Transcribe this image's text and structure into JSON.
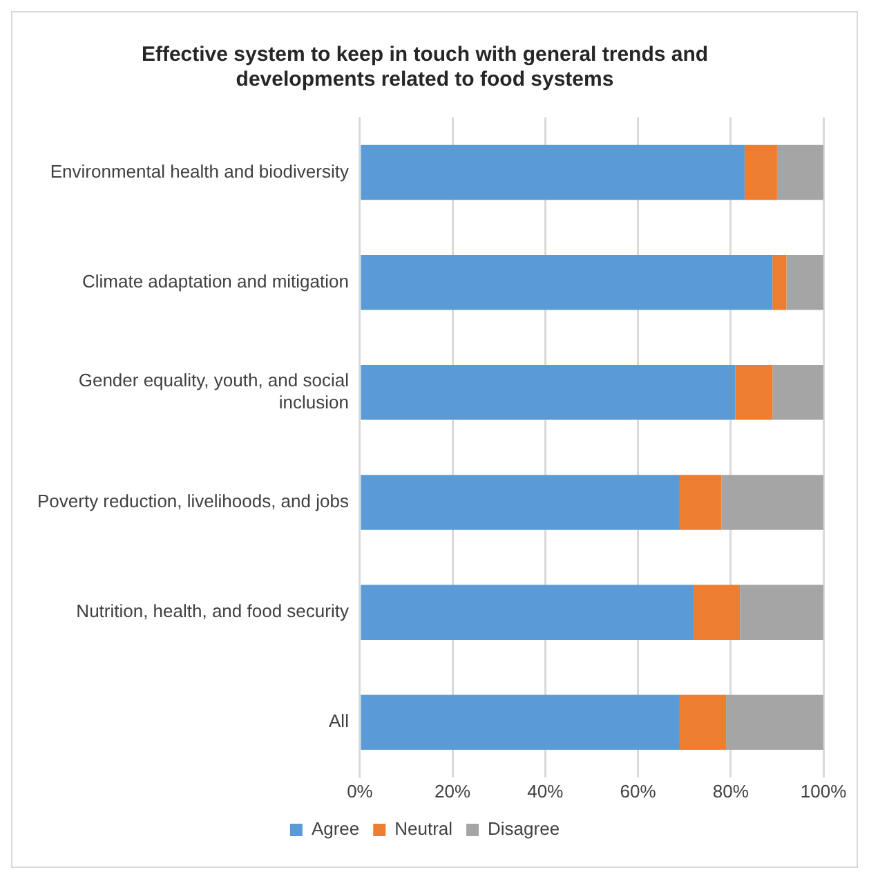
{
  "chart_data": {
    "type": "bar",
    "orientation": "horizontal",
    "stacked": true,
    "title": "Effective system to keep in touch with general trends and developments related to food systems",
    "categories": [
      "Environmental health and biodiversity",
      "Climate adaptation and mitigation",
      "Gender equality, youth, and social inclusion",
      "Poverty reduction, livelihoods, and jobs",
      "Nutrition, health, and food security",
      "All"
    ],
    "series": [
      {
        "name": "Agree",
        "color": "#5b9bd5",
        "values": [
          83,
          89,
          81,
          69,
          72,
          69
        ]
      },
      {
        "name": "Neutral",
        "color": "#ed7d31",
        "values": [
          7,
          3,
          8,
          9,
          10,
          10
        ]
      },
      {
        "name": "Disagree",
        "color": "#a5a5a5",
        "values": [
          10,
          8,
          11,
          22,
          18,
          21
        ]
      }
    ],
    "xlim": [
      0,
      100
    ],
    "xticks": [
      {
        "value": 0,
        "label": "0%"
      },
      {
        "value": 20,
        "label": "20%"
      },
      {
        "value": 40,
        "label": "40%"
      },
      {
        "value": 60,
        "label": "60%"
      },
      {
        "value": 80,
        "label": "80%"
      },
      {
        "value": 100,
        "label": "100%"
      }
    ],
    "grid": "x",
    "legend": "bottom"
  }
}
